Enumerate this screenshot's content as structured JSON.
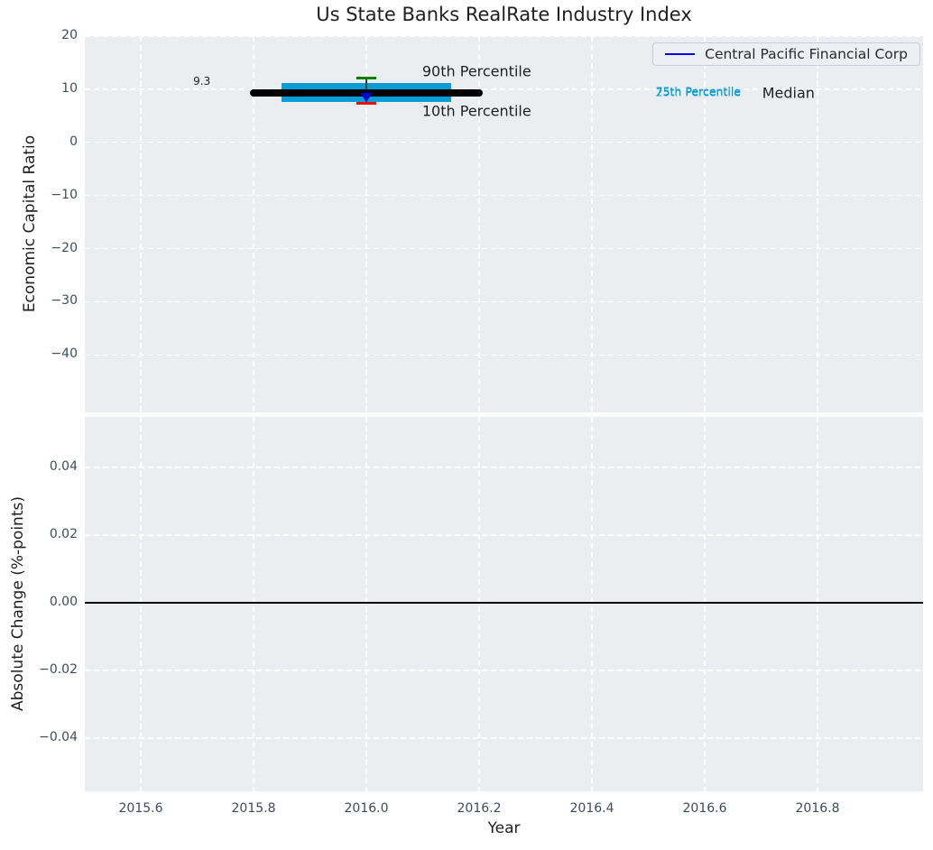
{
  "figure": {
    "title": "Us State Banks RealRate Industry Index"
  },
  "colors": {
    "figure_bg": "#ffffff",
    "axes_bg": "#eaeef1",
    "grid": "#ffffff",
    "median_line": "#000000",
    "iqr_band": "#0d9dd6",
    "p90_cap": "#008000",
    "p10_cap": "#e31010",
    "errorbar_line": "#3a3a3a",
    "marker": "#0000d0",
    "legend_line": "#0202f5",
    "zero_line": "#000000",
    "tick_label": "#3c4c5f",
    "text": "#1f1f1f",
    "percentile_text": "#0d9dd6"
  },
  "chart_data": [
    {
      "id": "economic-capital-ratio-panel",
      "type": "scatter",
      "title": "Us State Banks RealRate Industry Index",
      "ylabel": "Economic Capital Ratio",
      "xlabel": "",
      "grid": true,
      "legend": {
        "label": "Central Pacific Financial Corp",
        "position": "upper right"
      },
      "xlim": [
        2015.5008,
        2016.9872
      ],
      "ylim": [
        -50.8,
        20
      ],
      "xticks": {
        "values": [
          2015.6,
          2015.8,
          2016.0,
          2016.2,
          2016.4,
          2016.6,
          2016.8
        ],
        "labels": [
          "2015.6",
          "2015.8",
          "2016.0",
          "2016.2",
          "2016.4",
          "2016.6",
          "2016.8"
        ],
        "show_labels": false
      },
      "yticks": {
        "values": [
          20,
          10,
          0,
          -10,
          -20,
          -30,
          -40
        ],
        "labels": [
          "20",
          "10",
          "0",
          "−10",
          "−20",
          "−30",
          "−40"
        ]
      },
      "series": [
        {
          "name": "Central Pacific Financial Corp",
          "x": 2016.0,
          "median": 9.3,
          "p75": 10.4,
          "p25": 8.4,
          "p90": 12.1,
          "p10": 7.3,
          "marker_y": 8.5,
          "median_x_range": [
            2015.8,
            2016.2
          ],
          "iqr_x_range": [
            2015.85,
            2016.15
          ]
        }
      ],
      "annotations": [
        {
          "text": "9.3",
          "x": 2015.693,
          "y": 11.5,
          "color": "#1f1f1f",
          "size": 12
        },
        {
          "text": "90th Percentile",
          "x": 2016.099,
          "y": 13.4,
          "color": "#1f1f1f",
          "size": 16
        },
        {
          "text": "10th Percentile",
          "x": 2016.099,
          "y": 5.9,
          "color": "#1f1f1f",
          "size": 16
        },
        {
          "text": "75th Percentile",
          "x": 2016.513,
          "y": 9.6,
          "color": "#0d9dd6",
          "size": 12.5
        },
        {
          "text": "25th Percentile",
          "x": 2016.513,
          "y": 9.4,
          "color": "#0d9dd6",
          "size": 12.5
        },
        {
          "text": "Median",
          "x": 2016.702,
          "y": 9.35,
          "color": "#1f1f1f",
          "size": 16
        }
      ]
    },
    {
      "id": "absolute-change-panel",
      "type": "line",
      "title": "",
      "ylabel": "Absolute Change (%-points)",
      "xlabel": "Year",
      "grid": true,
      "xlim": [
        2015.5008,
        2016.9872
      ],
      "ylim": [
        -0.05573,
        0.05493
      ],
      "xticks": {
        "values": [
          2015.6,
          2015.8,
          2016.0,
          2016.2,
          2016.4,
          2016.6,
          2016.8
        ],
        "labels": [
          "2015.6",
          "2015.8",
          "2016.0",
          "2016.2",
          "2016.4",
          "2016.6",
          "2016.8"
        ],
        "show_labels": true
      },
      "yticks": {
        "values": [
          0.04,
          0.02,
          0,
          -0.02,
          -0.04
        ],
        "labels": [
          "0.04",
          "0.02",
          "0.00",
          "−0.02",
          "−0.04"
        ]
      },
      "zero_line_y": 0,
      "series": []
    }
  ]
}
